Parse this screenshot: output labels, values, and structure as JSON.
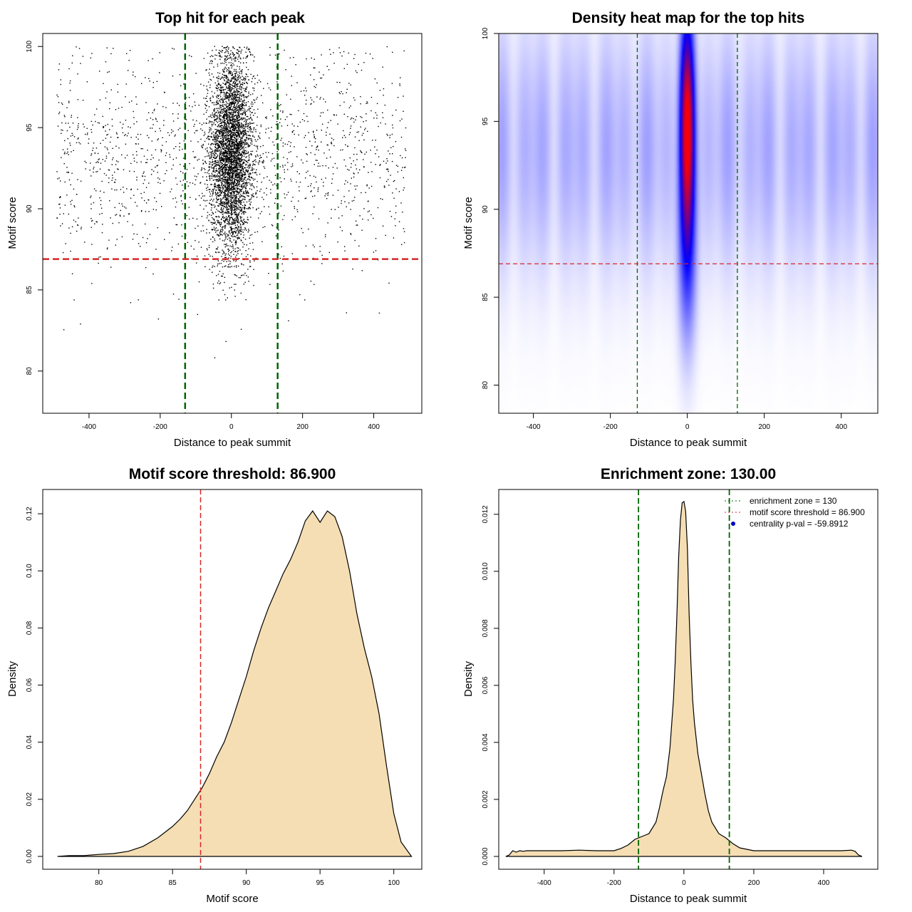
{
  "chart_data": [
    {
      "id": "scatter",
      "type": "scatter",
      "title": "Top hit for each peak",
      "xlabel": "Distance to peak summit",
      "ylabel": "Motif score",
      "xlim": [
        -530,
        535
      ],
      "ylim": [
        77.4,
        100.8
      ],
      "xticks": [
        -400,
        -200,
        0,
        200,
        400
      ],
      "xtick_labels": [
        "-400",
        "-200",
        "0",
        "200",
        "400"
      ],
      "yticks": [
        80,
        85,
        90,
        95,
        100
      ],
      "ytick_labels": [
        "80",
        "85",
        "90",
        "95",
        "100"
      ],
      "vlines": [
        -130,
        130
      ],
      "hline": 86.9,
      "colors": {
        "points": "#000000",
        "vline": "#006400",
        "hline": "#d62728"
      },
      "distribution": {
        "n_central": 4200,
        "central_sd_x": 30,
        "central_score_mean": 93.4,
        "central_score_sd": 3.0,
        "n_background": 1500,
        "background_x_range": [
          -490,
          490
        ],
        "background_score_mean": 93.2,
        "background_score_sd": 3.3,
        "score_max": 100
      }
    },
    {
      "id": "heatmap",
      "type": "heatmap",
      "title": "Density heat map for the top hits",
      "xlabel": "Distance to peak summit",
      "ylabel": "Motif score",
      "xlim": [
        -490,
        495
      ],
      "ylim": [
        78.4,
        100
      ],
      "xticks": [
        -400,
        -200,
        0,
        200,
        400
      ],
      "xtick_labels": [
        "-400",
        "-200",
        "0",
        "200",
        "400"
      ],
      "yticks": [
        80,
        85,
        90,
        95,
        100
      ],
      "ytick_labels": [
        "80",
        "85",
        "90",
        "95",
        "100"
      ],
      "vlines": [
        -130,
        130
      ],
      "hline": 86.9,
      "peak": {
        "x": 0,
        "y": 94.8,
        "sd_x": 11,
        "sd_y": 3.6
      },
      "colors": {
        "low": "#ffffff",
        "mid": "#0000ff",
        "high": "#ff0000",
        "vline": "#006400",
        "hline": "#d62728"
      }
    },
    {
      "id": "score-density",
      "type": "area",
      "title": "Motif score threshold: 86.900",
      "xlabel": "Motif score",
      "ylabel": "Density",
      "xlim": [
        76.2,
        101.9
      ],
      "ylim": [
        -0.0045,
        0.1285
      ],
      "xticks": [
        80,
        85,
        90,
        95,
        100
      ],
      "xtick_labels": [
        "80",
        "85",
        "90",
        "95",
        "100"
      ],
      "yticks": [
        0.0,
        0.02,
        0.04,
        0.06,
        0.08,
        0.1,
        0.12
      ],
      "ytick_labels": [
        "0.00",
        "0.02",
        "0.04",
        "0.06",
        "0.08",
        "0.10",
        "0.12"
      ],
      "x": [
        77.2,
        78,
        79,
        80,
        81,
        82,
        83,
        84,
        85,
        85.5,
        86,
        86.5,
        87,
        87.5,
        88,
        88.5,
        89,
        89.5,
        90,
        90.5,
        91,
        91.5,
        92,
        92.5,
        93,
        93.5,
        94,
        94.5,
        95,
        95.5,
        96,
        96.5,
        97,
        97.5,
        98,
        98.5,
        99,
        99.5,
        100,
        100.5,
        101.2
      ],
      "y": [
        0.0,
        0.0003,
        0.0003,
        0.0007,
        0.001,
        0.0018,
        0.0035,
        0.0065,
        0.0105,
        0.013,
        0.016,
        0.02,
        0.024,
        0.029,
        0.035,
        0.04,
        0.047,
        0.055,
        0.063,
        0.072,
        0.08,
        0.087,
        0.093,
        0.099,
        0.104,
        0.11,
        0.1175,
        0.121,
        0.117,
        0.121,
        0.119,
        0.112,
        0.1,
        0.085,
        0.073,
        0.063,
        0.05,
        0.032,
        0.015,
        0.005,
        0.0
      ],
      "vline": 86.9,
      "colors": {
        "fill": "#f5deb3",
        "line": "#000000",
        "vline": "#d62728"
      }
    },
    {
      "id": "distance-density",
      "type": "area",
      "title": "Enrichment zone: 130.00",
      "xlabel": "Distance to peak summit",
      "ylabel": "Density",
      "xlim": [
        -530,
        555
      ],
      "ylim": [
        -0.00045,
        0.01287
      ],
      "xticks": [
        -400,
        -200,
        0,
        200,
        400
      ],
      "xtick_labels": [
        "-400",
        "-200",
        "0",
        "200",
        "400"
      ],
      "yticks": [
        0.0,
        0.002,
        0.004,
        0.006,
        0.008,
        0.01,
        0.012
      ],
      "ytick_labels": [
        "0.000",
        "0.002",
        "0.004",
        "0.006",
        "0.008",
        "0.010",
        "0.012"
      ],
      "x": [
        -510,
        -500,
        -490,
        -480,
        -470,
        -460,
        -450,
        -400,
        -350,
        -300,
        -250,
        -200,
        -180,
        -160,
        -140,
        -120,
        -100,
        -80,
        -70,
        -60,
        -50,
        -40,
        -30,
        -25,
        -20,
        -15,
        -10,
        -5,
        0,
        5,
        10,
        15,
        20,
        25,
        30,
        40,
        50,
        60,
        70,
        80,
        100,
        120,
        140,
        160,
        180,
        200,
        250,
        300,
        350,
        400,
        450,
        480,
        490,
        500,
        510
      ],
      "y": [
        0.0,
        5e-05,
        0.0002,
        0.00015,
        0.0002,
        0.00018,
        0.0002,
        0.0002,
        0.0002,
        0.00022,
        0.0002,
        0.0002,
        0.00028,
        0.0004,
        0.0006,
        0.0007,
        0.0008,
        0.0012,
        0.0017,
        0.0023,
        0.0028,
        0.0038,
        0.0055,
        0.0068,
        0.0085,
        0.0105,
        0.0118,
        0.0124,
        0.01245,
        0.0121,
        0.0108,
        0.0085,
        0.0068,
        0.0055,
        0.0047,
        0.0036,
        0.0029,
        0.0022,
        0.0016,
        0.0012,
        0.0008,
        0.00065,
        0.00045,
        0.0003,
        0.00025,
        0.0002,
        0.0002,
        0.0002,
        0.0002,
        0.0002,
        0.0002,
        0.00022,
        0.00018,
        5e-05,
        0.0
      ],
      "vlines": [
        -130,
        130
      ],
      "legend": {
        "position": "top-right",
        "entries": [
          {
            "label": "enrichment zone = 130",
            "style": "dotted-line",
            "color": "#006400"
          },
          {
            "label": "motif score threshold = 86.900",
            "style": "dotted-line",
            "color": "#d62728"
          },
          {
            "label": "centrality p-val = -59.8912",
            "style": "point",
            "color": "#0000cc"
          }
        ]
      },
      "colors": {
        "fill": "#f5deb3",
        "line": "#000000",
        "vline": "#006400"
      }
    }
  ]
}
